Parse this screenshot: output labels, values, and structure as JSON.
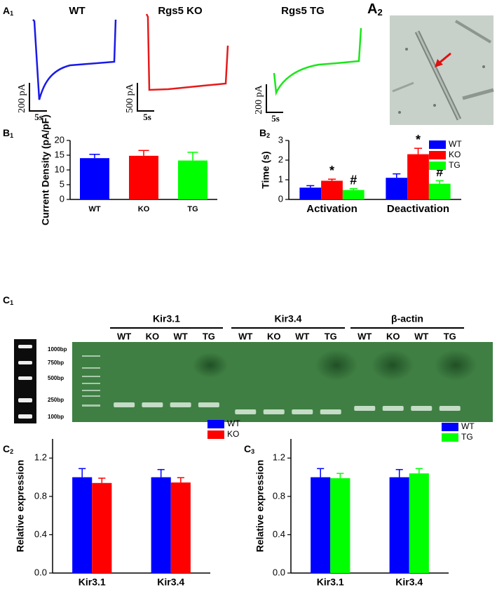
{
  "panel_labels": [
    {
      "letter": "A",
      "sub": "1"
    },
    {
      "letter": "A",
      "sub": "2"
    },
    {
      "letter": "B",
      "sub": "1"
    },
    {
      "letter": "B",
      "sub": "2"
    },
    {
      "letter": "C",
      "sub": "1"
    },
    {
      "letter": "C",
      "sub": "2"
    },
    {
      "letter": "C",
      "sub": "3"
    }
  ],
  "traces": [
    {
      "title": "WT",
      "scale_y": "200 pA",
      "scale_x": "5s"
    },
    {
      "title": "Rgs5 KO",
      "scale_y": "500 pA",
      "scale_x": "5s"
    },
    {
      "title": "Rgs5 TG",
      "scale_y": "200 pA",
      "scale_x": "5s"
    }
  ],
  "gel": {
    "groups": [
      {
        "name": "Kir3.1",
        "lanes": [
          "WT",
          "KO",
          "WT",
          "TG"
        ]
      },
      {
        "name": "Kir3.4",
        "lanes": [
          "WT",
          "KO",
          "WT",
          "TG"
        ]
      },
      {
        "name": "β-actin",
        "lanes": [
          "WT",
          "KO",
          "WT",
          "TG"
        ]
      }
    ],
    "ladder": [
      "1000bp",
      "750bp",
      "500bp",
      "250bp",
      "100bp"
    ]
  },
  "chart_data": [
    {
      "type": "bar",
      "ylabel": "Current Density (pA/pF)",
      "categories": [
        "WT",
        "KO",
        "TG"
      ],
      "values": [
        14,
        14.8,
        13.2
      ],
      "errors": [
        1.3,
        1.8,
        2.8
      ],
      "colors": [
        "#0000ff",
        "#ff0000",
        "#00ff00"
      ],
      "ylim": [
        0,
        20
      ],
      "yticks": [
        0,
        5,
        10,
        15,
        20
      ]
    },
    {
      "type": "grouped_bar",
      "ylabel": "Time (s)",
      "categories": [
        "Activation",
        "Deactivation"
      ],
      "series": [
        {
          "name": "WT",
          "color": "#0000ff",
          "values": [
            0.6,
            1.1
          ],
          "errors": [
            0.1,
            0.2
          ]
        },
        {
          "name": "KO",
          "color": "#ff0000",
          "values": [
            0.95,
            2.3
          ],
          "errors": [
            0.08,
            0.3
          ],
          "annotations": [
            "*",
            "*"
          ]
        },
        {
          "name": "TG",
          "color": "#00ff00",
          "values": [
            0.48,
            0.8
          ],
          "errors": [
            0.07,
            0.15
          ],
          "annotations": [
            "#",
            "#"
          ]
        }
      ],
      "ylim": [
        0,
        3
      ],
      "yticks": [
        0,
        1,
        2,
        3
      ],
      "legend": "upper right"
    },
    {
      "type": "grouped_bar",
      "ylabel": "Relative expression",
      "categories": [
        "Kir3.1",
        "Kir3.4"
      ],
      "series": [
        {
          "name": "WT",
          "color": "#0000ff",
          "values": [
            1.0,
            1.0
          ],
          "errors": [
            0.09,
            0.08
          ]
        },
        {
          "name": "KO",
          "color": "#ff0000",
          "values": [
            0.94,
            0.945
          ],
          "errors": [
            0.05,
            0.05
          ]
        }
      ],
      "ylim": [
        0,
        1.4
      ],
      "yticks": [
        {
          "value": 0,
          "label": "0.0"
        },
        0.4,
        0.8,
        1.2
      ],
      "legend": "upper right"
    },
    {
      "type": "grouped_bar",
      "ylabel": "Relative expression",
      "categories": [
        "Kir3.1",
        "Kir3.4"
      ],
      "series": [
        {
          "name": "WT",
          "color": "#0000ff",
          "values": [
            1.0,
            1.0
          ],
          "errors": [
            0.09,
            0.08
          ]
        },
        {
          "name": "TG",
          "color": "#00ff00",
          "values": [
            0.99,
            1.04
          ],
          "errors": [
            0.05,
            0.05
          ]
        }
      ],
      "ylim": [
        0,
        1.4
      ],
      "yticks": [
        {
          "value": 0,
          "label": "0.0"
        },
        0.4,
        0.8,
        1.2
      ],
      "legend": "upper right"
    }
  ]
}
